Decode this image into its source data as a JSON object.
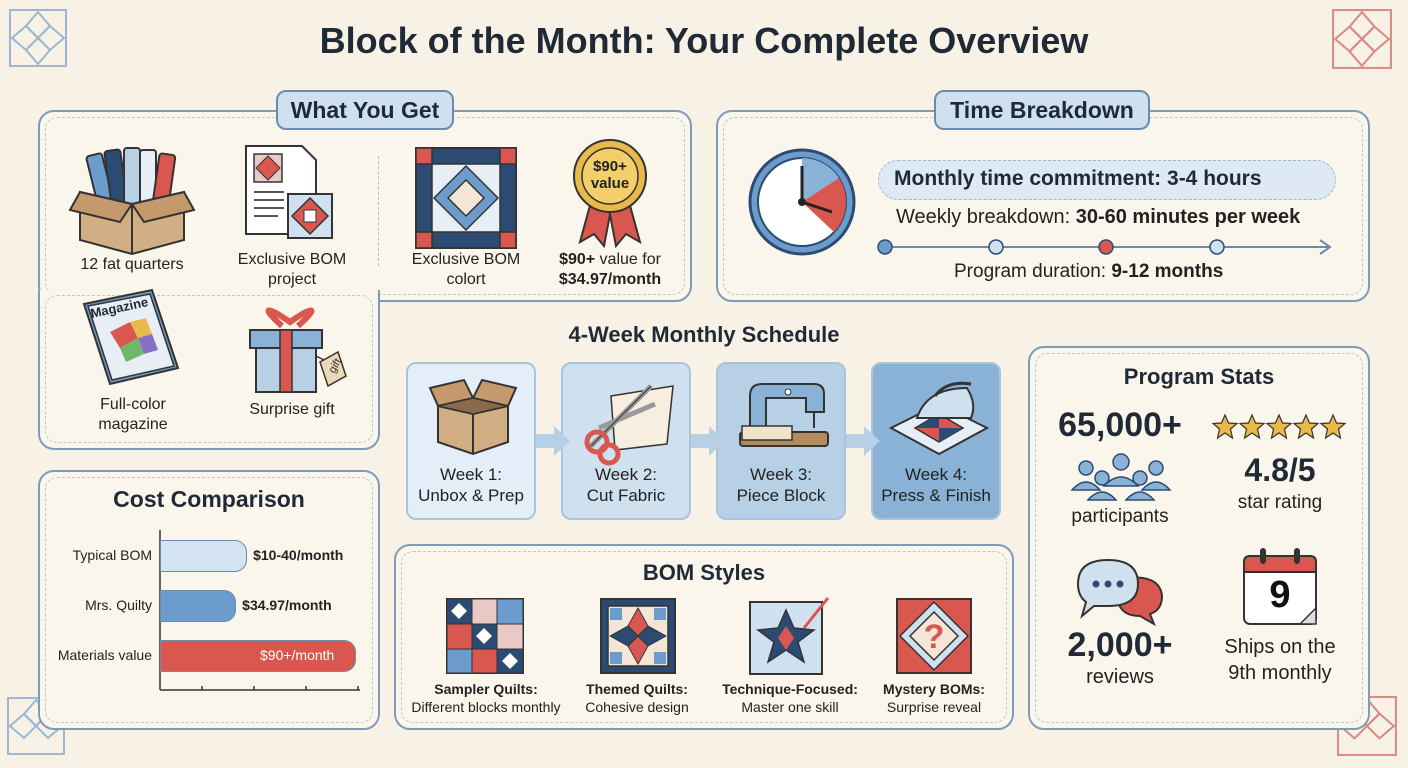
{
  "title": "Block of the Month: Your Complete Overview",
  "what_you_get": {
    "heading": "What You Get",
    "items": [
      {
        "label": "12 fat quarters",
        "icon": "fabric-box-icon"
      },
      {
        "label": "Exclusive BOM project",
        "icon": "pattern-sheet-icon"
      },
      {
        "label": "Exclusive BOM colort",
        "icon": "quilt-block-icon"
      },
      {
        "label_bold1": "$90+",
        "label_mid": " value for",
        "label_bold2": "$34.97/month",
        "badge": "$90+ value",
        "icon": "value-ribbon-icon"
      },
      {
        "label": "Full-color magazine",
        "icon": "magazine-icon",
        "cover_text": "Magazine"
      },
      {
        "label": "Surprise gift",
        "icon": "gift-box-icon",
        "tag_text": "gift"
      }
    ]
  },
  "time": {
    "heading": "Time Breakdown",
    "monthly": "Monthly time commitment: 3-4 hours",
    "weekly_prefix": "Weekly breakdown: ",
    "weekly_value": "30-60 minutes per week",
    "duration_prefix": "Program duration: ",
    "duration_value": "9-12 months"
  },
  "schedule": {
    "heading": "4-Week Monthly Schedule",
    "weeks": [
      {
        "line1": "Week 1:",
        "line2": "Unbox & Prep",
        "icon": "open-box-icon"
      },
      {
        "line1": "Week 2:",
        "line2": "Cut Fabric",
        "icon": "scissors-icon"
      },
      {
        "line1": "Week 3:",
        "line2": "Piece Block",
        "icon": "sewing-machine-icon"
      },
      {
        "line1": "Week 4:",
        "line2": "Press & Finish",
        "icon": "iron-icon"
      }
    ]
  },
  "cost": {
    "heading": "Cost Comparison",
    "rows": [
      {
        "label": "Typical BOM",
        "value_text": "$10-40/month",
        "value": 40,
        "color": "#d4e3f1"
      },
      {
        "label": "Mrs. Quilty",
        "value_text": "$34.97/month",
        "value": 34.97,
        "color": "#6b9ccb"
      },
      {
        "label": "Materials value",
        "value_text": "$90+/month",
        "value": 90,
        "color": "#d9574e"
      }
    ]
  },
  "styles": {
    "heading": "BOM Styles",
    "items": [
      {
        "name": "Sampler Quilts:",
        "desc": "Different blocks monthly",
        "icon": "sampler-quilt-icon"
      },
      {
        "name": "Themed Quilts:",
        "desc": "Cohesive design",
        "icon": "themed-quilt-icon"
      },
      {
        "name": "Technique-Focused:",
        "desc": "Master one skill",
        "icon": "star-block-icon"
      },
      {
        "name": "Mystery BOMs:",
        "desc": "Surprise reveal",
        "icon": "mystery-block-icon"
      }
    ]
  },
  "stats": {
    "heading": "Program Stats",
    "participants_value": "65,000+",
    "participants_label": "participants",
    "rating_value": "4.8/5",
    "rating_label": "star rating",
    "rating_stars": 5,
    "reviews_value": "2,000+",
    "reviews_label": "reviews",
    "calendar_day": "9",
    "ships_line1": "Ships on the",
    "ships_line2": "9th monthly"
  },
  "colors": {
    "navy": "#1f2a36",
    "blue": "#6b9ccb",
    "light_blue": "#cfe0ef",
    "red": "#d9574e",
    "cream": "#f8f2e6"
  }
}
